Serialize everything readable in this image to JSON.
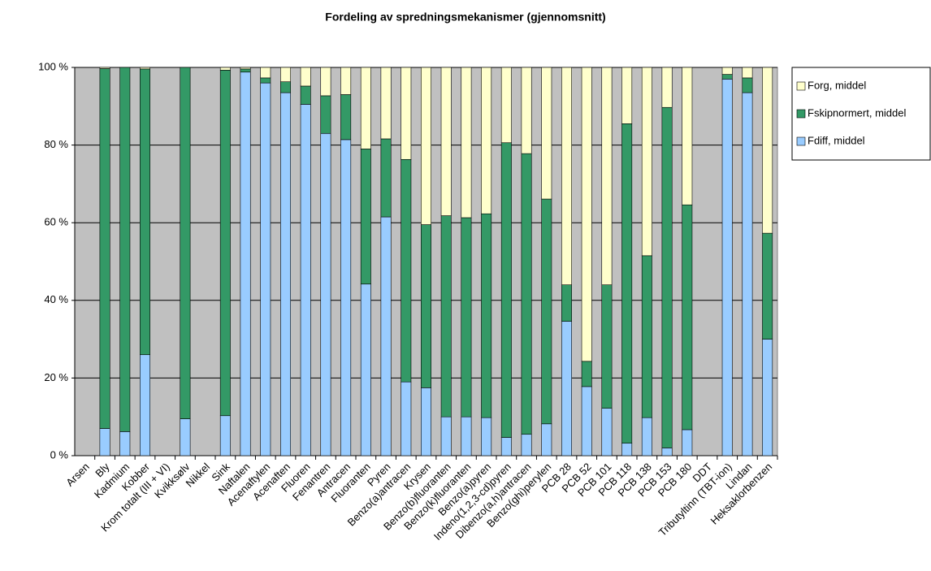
{
  "chart_data": {
    "type": "stacked_bar",
    "title": "Fordeling av spredningsmekanismer (gjennomsnitt)",
    "categories": [
      "Arsen",
      "Bly",
      "Kadmium",
      "Kobber",
      "Krom totalt (III + VI)",
      "Kvikksølv",
      "Nikkel",
      "Sink",
      "Naftalen",
      "Acenaftylen",
      "Acenaften",
      "Fluoren",
      "Fenantren",
      "Antracen",
      "Fluoranten",
      "Pyren",
      "Benzo(a)antracen",
      "Krysen",
      "Benzo(b)fluoranten",
      "Benzo(k)fluoranten",
      "Benzo(a)pyren",
      "Indeno(1,2,3-cd)pyren",
      "Dibenzo(a,h)antracen",
      "Benzo(ghi)perylen",
      "PCB 28",
      "PCB 52",
      "PCB 101",
      "PCB 118",
      "PCB 138",
      "PCB 153",
      "PCB 180",
      "DDT",
      "Tributyltinn (TBT-ion)",
      "Lindan",
      "Heksaklorbenzen"
    ],
    "series": [
      {
        "name": "Fdiff, middel",
        "color": "#99ccff",
        "values": [
          null,
          7,
          6.2,
          26,
          null,
          9.5,
          null,
          10.3,
          98.8,
          96,
          93.5,
          90.5,
          83,
          81.4,
          44.2,
          61.5,
          19,
          17.5,
          10,
          10,
          9.8,
          4.7,
          5.5,
          8.2,
          34.6,
          17.8,
          12.2,
          3.2,
          9.8,
          2,
          6.7,
          null,
          97,
          93.5,
          30
        ]
      },
      {
        "name": "Fskipnormert, middel",
        "color": "#339966",
        "values": [
          null,
          92.7,
          93.8,
          73.6,
          null,
          90.5,
          null,
          89,
          0.8,
          1.3,
          2.8,
          4.7,
          9.7,
          11.6,
          34.8,
          20.1,
          57.3,
          42,
          51.8,
          51.3,
          52.5,
          75.9,
          72.3,
          57.9,
          9.4,
          6.5,
          31.8,
          82.3,
          41.7,
          87.7,
          57.9,
          null,
          1.2,
          3.8,
          27.3
        ]
      },
      {
        "name": "Forg, middel",
        "color": "#ffffcc",
        "values": [
          null,
          0.3,
          0,
          0.4,
          null,
          0,
          null,
          0.7,
          0.4,
          2.7,
          3.7,
          4.8,
          7.3,
          7,
          21,
          18.4,
          23.7,
          40.5,
          38.2,
          38.7,
          37.7,
          19.4,
          22.2,
          33.9,
          56,
          75.7,
          56,
          14.5,
          48.5,
          10.3,
          35.4,
          null,
          1.8,
          2.7,
          42.7
        ]
      }
    ],
    "ylim": [
      0,
      100
    ],
    "yticks": [
      {
        "value": 0,
        "label": "0 %"
      },
      {
        "value": 20,
        "label": "20 %"
      },
      {
        "value": 40,
        "label": "40 %"
      },
      {
        "value": 60,
        "label": "60 %"
      },
      {
        "value": 80,
        "label": "80 %"
      },
      {
        "value": 100,
        "label": "100 %"
      }
    ],
    "grid": true,
    "legend": "right"
  }
}
